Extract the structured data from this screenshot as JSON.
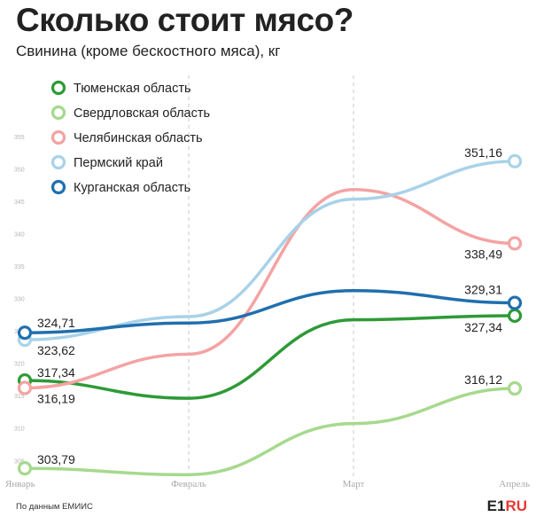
{
  "header": {
    "title": "Сколько стоит мясо?",
    "subtitle": "Свинина (кроме бескостного мяса), кг"
  },
  "footer": {
    "source": "По данным ЕМИИС",
    "logo_e1": "E1",
    "logo_ru": "RU"
  },
  "chart_data": {
    "type": "line",
    "categories": [
      "Январь",
      "Февраль",
      "Март",
      "Апрель"
    ],
    "ylim": [
      300,
      357
    ],
    "yticks": [
      "355",
      "350",
      "345",
      "340",
      "335",
      "330",
      "325",
      "320",
      "315",
      "310",
      "305"
    ],
    "grid": "vertical-dashed",
    "legend": "top-left",
    "series": [
      {
        "name": "Тюменская область",
        "color": "#2e9a36",
        "values": [
          317.34,
          314.6,
          326.7,
          327.34
        ],
        "labels": [
          "317,34",
          "",
          "",
          "327,34"
        ]
      },
      {
        "name": "Свердловская область",
        "color": "#a6d98d",
        "values": [
          303.79,
          302.8,
          310.7,
          316.12
        ],
        "labels": [
          "303,79",
          "",
          "",
          "316,12"
        ]
      },
      {
        "name": "Челябинская область",
        "color": "#f4a3a3",
        "values": [
          316.19,
          321.4,
          346.8,
          338.49
        ],
        "labels": [
          "316,19",
          "",
          "",
          "338,49"
        ]
      },
      {
        "name": "Пермский край",
        "color": "#a9d2e8",
        "values": [
          323.62,
          327.2,
          345.3,
          351.16
        ],
        "labels": [
          "323,62",
          "",
          "",
          "351,16"
        ]
      },
      {
        "name": "Курганская область",
        "color": "#1f6fae",
        "values": [
          324.71,
          326.2,
          331.2,
          329.31
        ],
        "labels": [
          "324,71",
          "",
          "",
          "329,31"
        ]
      }
    ]
  }
}
